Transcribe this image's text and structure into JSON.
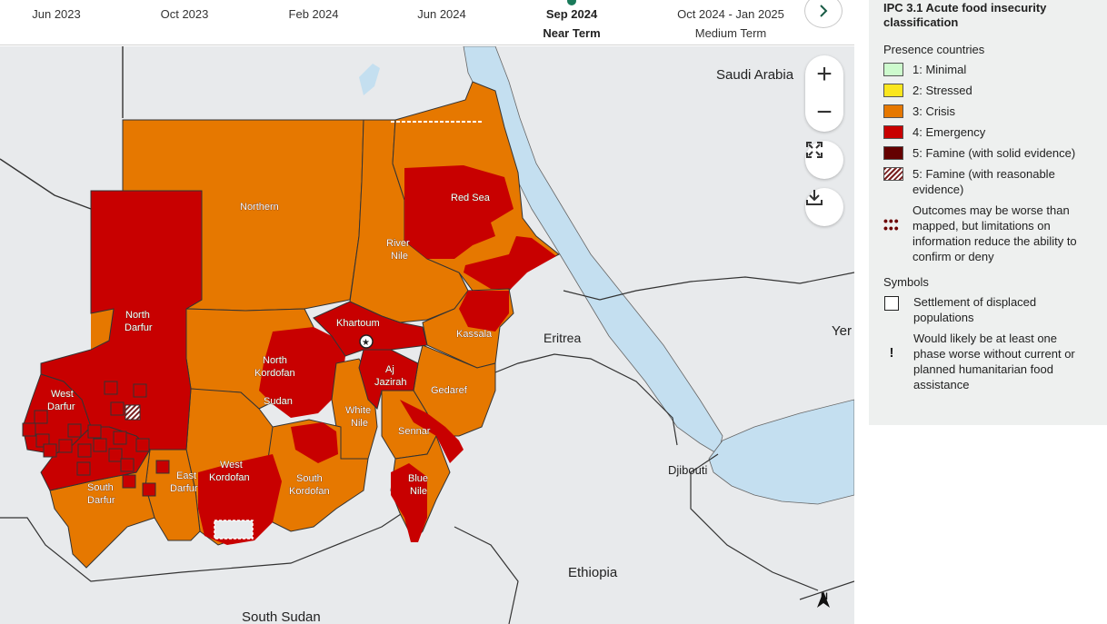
{
  "timeline": {
    "items": [
      {
        "label": "Jun 2023",
        "sub": ""
      },
      {
        "label": "Oct 2023",
        "sub": ""
      },
      {
        "label": "Feb 2024",
        "sub": ""
      },
      {
        "label": "Jun 2024",
        "sub": ""
      },
      {
        "label": "Sep 2024",
        "sub": "Near Term"
      },
      {
        "label": "Oct 2024 - Jan 2025",
        "sub": "Medium Term"
      }
    ],
    "next_icon": "chevron-right-icon"
  },
  "map": {
    "country_labels": {
      "saudi_arabia": "Saudi Arabia",
      "eritrea": "Eritrea",
      "yemen": "Yer",
      "djibouti": "Djibouti",
      "ethiopia": "Ethiopia",
      "south_sudan": "South Sudan",
      "sudan": "Sudan"
    },
    "region_labels": {
      "northern": "Northern",
      "red_sea": "Red Sea",
      "river_nile": [
        "River",
        "Nile"
      ],
      "north_darfur": [
        "North",
        "Darfur"
      ],
      "khartoum": "Khartoum",
      "kassala": "Kassala",
      "north_kordofan": [
        "North",
        "Kordofan"
      ],
      "aj_jazirah": [
        "Aj",
        "Jazirah"
      ],
      "gedaref": "Gedaref",
      "west_darfur": [
        "West",
        "Darfur"
      ],
      "white_nile": [
        "White",
        "Nile"
      ],
      "sennar": "Sennar",
      "west_kordofan": [
        "West",
        "Kordofan"
      ],
      "east_darfur": [
        "East",
        "Darfur"
      ],
      "south_darfur": [
        "South",
        "Darfur"
      ],
      "south_kordofan": [
        "South",
        "Kordofan"
      ],
      "blue_nile": [
        "Blue",
        "Nile"
      ]
    },
    "phase_colors": {
      "minimal": "#cdfacd",
      "stressed": "#fae61e",
      "crisis": "#e67800",
      "emergency": "#c80000",
      "famine": "#640000",
      "water": "#c4dff0",
      "land": "#e8eaec"
    },
    "controls": {
      "zoom_in": "+",
      "zoom_out": "−",
      "fullscreen_icon": "fullscreen-icon",
      "download_icon": "download-icon"
    },
    "north_arrow": "N"
  },
  "legend": {
    "title": "IPC 3.1 Acute food insecurity classification",
    "presence_heading": "Presence countries",
    "phases": [
      {
        "label": "1: Minimal",
        "color": "#cdfacd"
      },
      {
        "label": "2: Stressed",
        "color": "#fae61e"
      },
      {
        "label": "3: Crisis",
        "color": "#e67800"
      },
      {
        "label": "4: Emergency",
        "color": "#c80000"
      },
      {
        "label": "5: Famine (with solid evidence)",
        "color": "#640000"
      },
      {
        "label": "5: Famine (with reasonable evidence)",
        "color": "hatch"
      }
    ],
    "outcomes_note": "Outcomes may be worse than mapped, but limitations on information reduce the ability to confirm or deny",
    "symbols_heading": "Symbols",
    "settlement_label": "Settlement of displaced populations",
    "assistance_symbol": "!",
    "assistance_label": "Would likely be at least one phase worse without current or planned humanitarian food assistance"
  }
}
